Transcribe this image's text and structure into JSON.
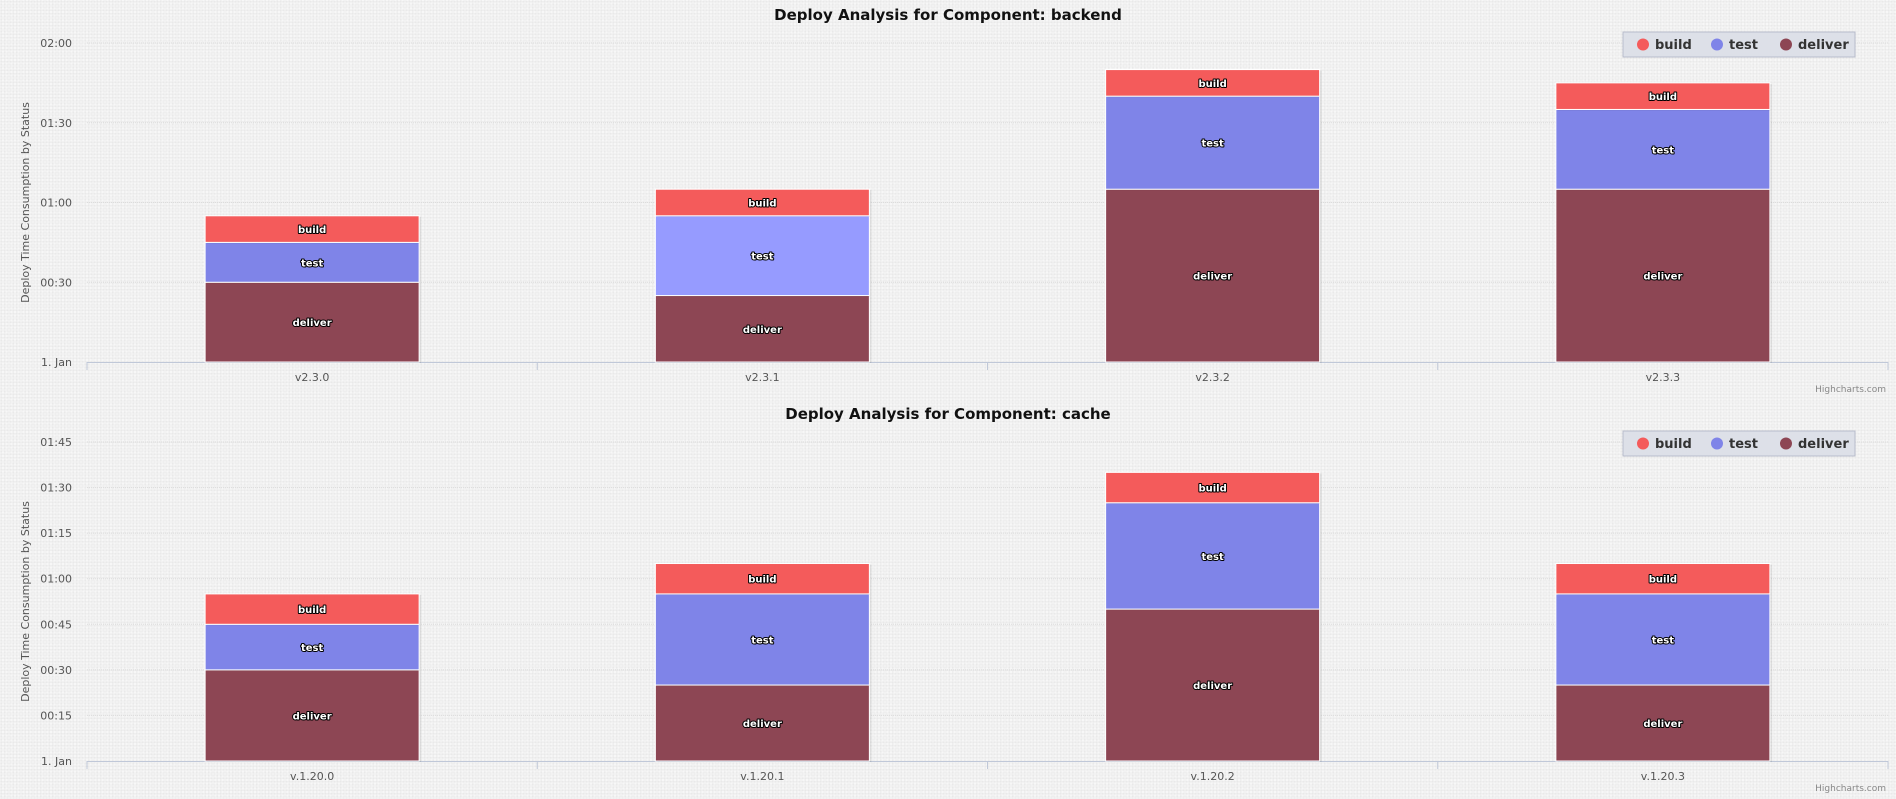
{
  "credits": "Highcharts.com",
  "chart_data": [
    {
      "type": "bar",
      "stacked": true,
      "title": "Deploy Analysis for Component: backend",
      "ylabel": "Deploy Time Consumption by Status",
      "categories": [
        "v2.3.0",
        "v2.3.1",
        "v2.3.2",
        "v2.3.3"
      ],
      "y_unit": "minutes",
      "ylim": [
        0,
        120
      ],
      "y_ticks": [
        0,
        30,
        60,
        90,
        120
      ],
      "y_tick_labels": [
        "1. Jan",
        "00:30",
        "01:00",
        "01:30",
        "02:00"
      ],
      "grid": true,
      "legend": "top-right",
      "series": [
        {
          "name": "build",
          "label": "build",
          "color": "#f45b5b",
          "values": [
            10,
            10,
            10,
            10
          ]
        },
        {
          "name": "test",
          "label": "test",
          "color": "#7f84e8",
          "values": [
            15,
            30,
            35,
            30
          ],
          "point_colors": [
            null,
            "#969bff",
            null,
            null
          ]
        },
        {
          "name": "deliver",
          "label": "deliver",
          "color": "#8d4654",
          "values": [
            30,
            25,
            65,
            65
          ]
        }
      ]
    },
    {
      "type": "bar",
      "stacked": true,
      "title": "Deploy Analysis for Component: cache",
      "ylabel": "Deploy Time Consumption by Status",
      "categories": [
        "v.1.20.0",
        "v.1.20.1",
        "v.1.20.2",
        "v.1.20.3"
      ],
      "y_unit": "minutes",
      "ylim": [
        0,
        105
      ],
      "y_ticks": [
        0,
        15,
        30,
        45,
        60,
        75,
        90,
        105
      ],
      "y_tick_labels": [
        "1. Jan",
        "00:15",
        "00:30",
        "00:45",
        "01:00",
        "01:15",
        "01:30",
        "01:45"
      ],
      "grid": true,
      "legend": "top-right",
      "series": [
        {
          "name": "build",
          "label": "build",
          "color": "#f45b5b",
          "values": [
            10,
            10,
            10,
            10
          ]
        },
        {
          "name": "test",
          "label": "test",
          "color": "#7f84e8",
          "values": [
            15,
            30,
            35,
            30
          ]
        },
        {
          "name": "deliver",
          "label": "deliver",
          "color": "#8d4654",
          "values": [
            30,
            25,
            50,
            25
          ]
        }
      ]
    }
  ]
}
